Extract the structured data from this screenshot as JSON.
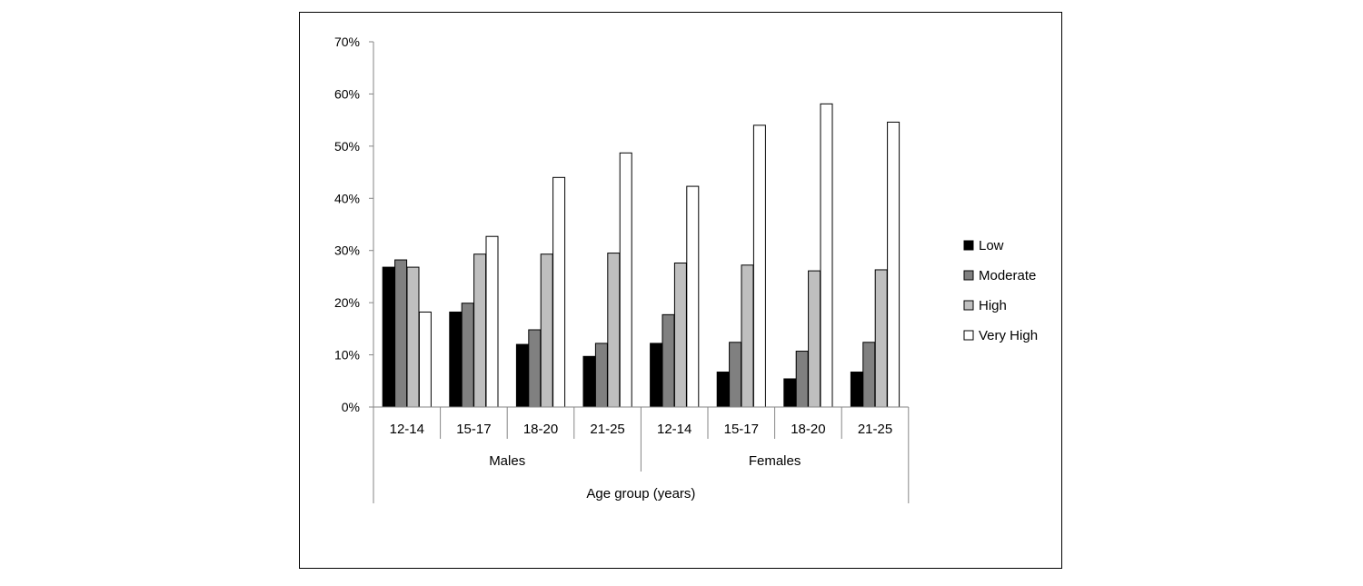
{
  "chart_data": {
    "type": "bar",
    "title": "",
    "xlabel": "Age group (years)",
    "ylabel": "",
    "ylim": [
      0,
      0.7
    ],
    "yticks": [
      "0%",
      "10%",
      "20%",
      "30%",
      "40%",
      "50%",
      "60%",
      "70%"
    ],
    "grid": false,
    "legend_position": "right",
    "groups": [
      {
        "label": "Males",
        "categories": [
          "12-14",
          "15-17",
          "18-20",
          "21-25"
        ]
      },
      {
        "label": "Females",
        "categories": [
          "12-14",
          "15-17",
          "18-20",
          "21-25"
        ]
      }
    ],
    "series": [
      {
        "name": "Low",
        "color": "#000000",
        "values": [
          0.268,
          0.182,
          0.12,
          0.097,
          0.122,
          0.067,
          0.054,
          0.067
        ]
      },
      {
        "name": "Moderate",
        "color": "#808080",
        "values": [
          0.282,
          0.199,
          0.148,
          0.122,
          0.177,
          0.124,
          0.107,
          0.124
        ]
      },
      {
        "name": "High",
        "color": "#bfbfbf",
        "values": [
          0.268,
          0.293,
          0.293,
          0.295,
          0.276,
          0.272,
          0.261,
          0.263
        ]
      },
      {
        "name": "Very High",
        "color": "#ffffff",
        "values": [
          0.182,
          0.327,
          0.44,
          0.487,
          0.423,
          0.54,
          0.581,
          0.546
        ]
      }
    ]
  }
}
